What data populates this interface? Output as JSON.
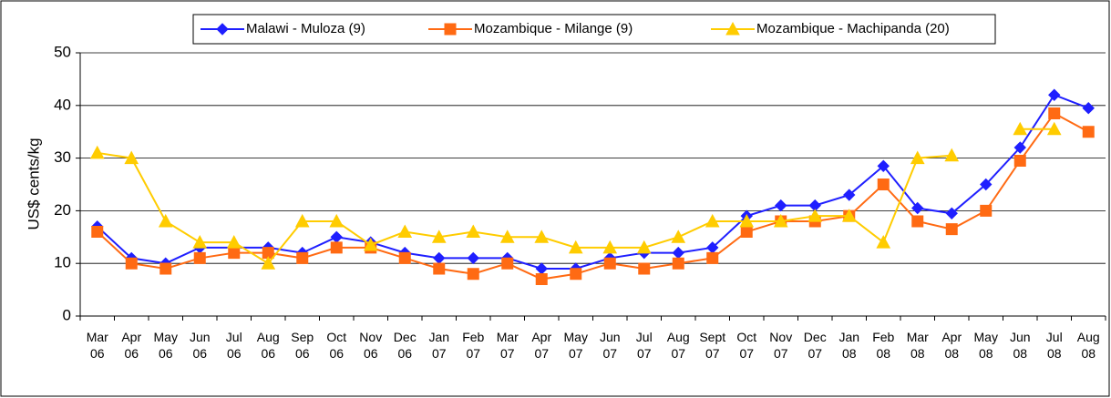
{
  "chart_data": {
    "type": "line",
    "y_label": "US$ cents/kg",
    "categories": [
      "Mar 06",
      "Apr 06",
      "May 06",
      "Jun 06",
      "Jul 06",
      "Aug 06",
      "Sep 06",
      "Oct 06",
      "Nov 06",
      "Dec 06",
      "Jan 07",
      "Feb 07",
      "Mar 07",
      "Apr 07",
      "May 07",
      "Jun 07",
      "Jul 07",
      "Aug 07",
      "Sept 07",
      "Oct 07",
      "Nov 07",
      "Dec 07",
      "Jan 08",
      "Feb 08",
      "Mar 08",
      "Apr 08",
      "May 08",
      "Jun 08",
      "Jul 08",
      "Aug 08"
    ],
    "series": [
      {
        "name": "Malawi - Muloza (9)",
        "color": "#1f1fff",
        "marker": "diamond",
        "values": [
          17,
          11,
          10,
          13,
          13,
          13,
          12,
          15,
          14,
          12,
          11,
          11,
          11,
          9,
          9,
          11,
          12,
          12,
          13,
          19,
          21,
          21,
          23,
          28.5,
          20.5,
          19.5,
          25,
          32,
          42,
          39.5
        ]
      },
      {
        "name": "Mozambique - Milange (9)",
        "color": "#ff6a13",
        "marker": "square",
        "values": [
          16,
          10,
          9,
          11,
          12,
          12,
          11,
          13,
          13,
          11,
          9,
          8,
          10,
          7,
          8,
          10,
          9,
          10,
          11,
          16,
          18,
          18,
          19,
          25,
          18,
          16.5,
          20,
          29.5,
          38.5,
          35
        ]
      },
      {
        "name": "Mozambique - Machipanda (20)",
        "color": "#ffcc00",
        "marker": "triangle",
        "values": [
          31,
          30,
          18,
          14,
          14,
          10,
          18,
          18,
          13.5,
          16,
          15,
          16,
          15,
          15,
          13,
          13,
          13,
          15,
          18,
          18,
          18,
          19,
          19,
          14,
          30,
          30.5,
          null,
          35.5,
          35.5,
          null
        ]
      }
    ],
    "ylim": [
      0,
      50
    ],
    "yticks": [
      0,
      10,
      20,
      30,
      40,
      50
    ],
    "grid": true,
    "legend": "top"
  }
}
